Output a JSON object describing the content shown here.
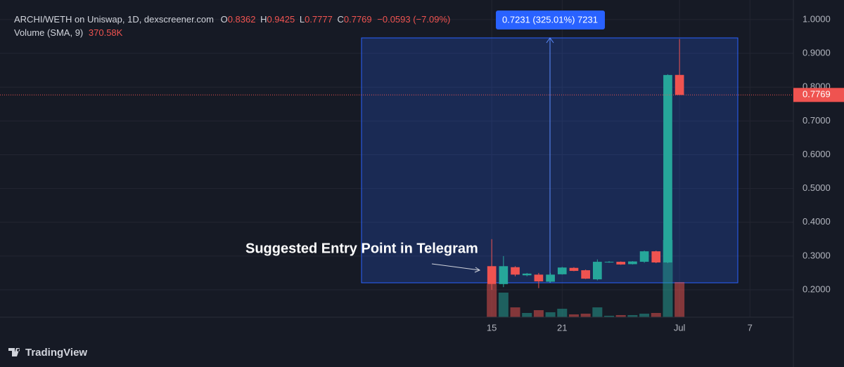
{
  "chart_data": {
    "type": "candlestick",
    "title": "ARCHI/WETH on Uniswap, 1D, dexscreener.com",
    "ohlc_header": {
      "o_label": "O",
      "open": "0.8362",
      "h_label": "H",
      "high": "0.9425",
      "l_label": "L",
      "low": "0.7777",
      "c_label": "C",
      "close": "0.7769",
      "change": "−0.0593 (−7.09%)"
    },
    "volume_header": {
      "label": "Volume (SMA, 9)",
      "value": "370.58K"
    },
    "x": [
      0,
      1,
      2,
      3,
      4,
      5,
      6,
      7,
      8,
      9,
      10,
      11,
      12,
      13,
      14,
      15,
      16
    ],
    "open": [
      0.27,
      0.217,
      0.267,
      0.243,
      0.245,
      0.224,
      0.246,
      0.265,
      0.258,
      0.231,
      0.281,
      0.283,
      0.276,
      0.283,
      0.314,
      0.281,
      0.8362
    ],
    "high": [
      0.35,
      0.3,
      0.27,
      0.25,
      0.25,
      0.25,
      0.268,
      0.267,
      0.26,
      0.29,
      0.285,
      0.284,
      0.285,
      0.316,
      0.316,
      0.838,
      0.9425
    ],
    "low": [
      0.2,
      0.208,
      0.24,
      0.24,
      0.205,
      0.222,
      0.245,
      0.255,
      0.232,
      0.228,
      0.28,
      0.274,
      0.275,
      0.28,
      0.279,
      0.279,
      0.7777
    ],
    "close": [
      0.217,
      0.27,
      0.245,
      0.248,
      0.225,
      0.245,
      0.266,
      0.256,
      0.233,
      0.283,
      0.283,
      0.275,
      0.284,
      0.314,
      0.281,
      0.836,
      0.7769
    ],
    "volume": [
      790000,
      588000,
      235000,
      101000,
      168000,
      118000,
      202000,
      67000,
      84000,
      235000,
      34000,
      50000,
      50000,
      84000,
      101000,
      1848000,
      840000
    ],
    "up_color": "#26a69a",
    "down_color": "#ef5350",
    "xlim": [
      -41.9,
      25.7
    ],
    "xticks": [
      {
        "value": 0,
        "label": "15"
      },
      {
        "value": 6,
        "label": "21"
      },
      {
        "value": 16,
        "label": "Jul"
      },
      {
        "value": 22,
        "label": "7"
      }
    ],
    "ylim": [
      0.119,
      1.058
    ],
    "yticks": [
      {
        "value": 0.2,
        "label": "0.2000"
      },
      {
        "value": 0.3,
        "label": "0.3000"
      },
      {
        "value": 0.4,
        "label": "0.4000"
      },
      {
        "value": 0.5,
        "label": "0.5000"
      },
      {
        "value": 0.6,
        "label": "0.6000"
      },
      {
        "value": 0.7,
        "label": "0.7000"
      },
      {
        "value": 0.8,
        "label": "0.8000"
      },
      {
        "value": 0.9,
        "label": "0.9000"
      },
      {
        "value": 1.0,
        "label": "1.0000"
      }
    ],
    "grid": true,
    "last_price": 0.7769,
    "measure_label": "0.7231 (325.01%) 7231",
    "annotation": "Suggested Entry Point in Telegram",
    "branding": "TradingView"
  }
}
